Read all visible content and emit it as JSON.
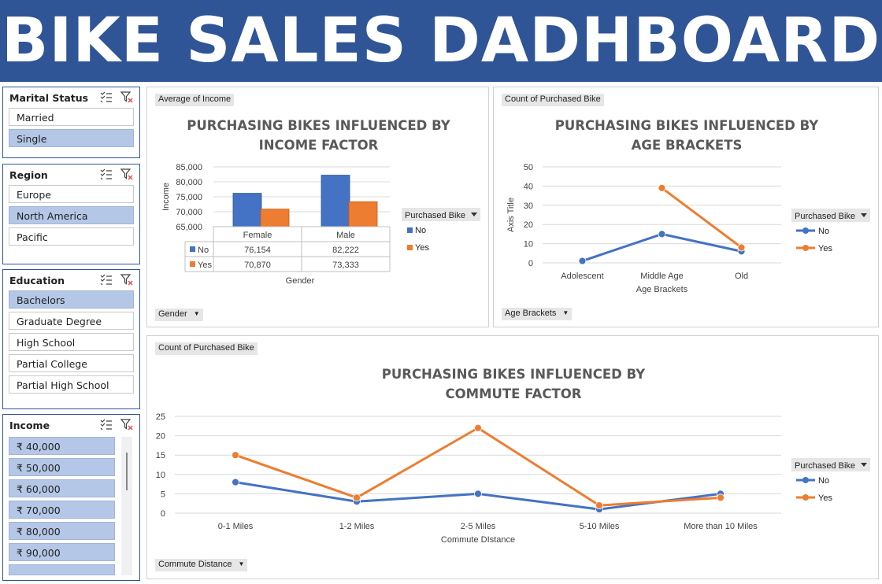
{
  "dashboard": {
    "title": "BIKE SALES DADHBOARD"
  },
  "slicers": {
    "marital": {
      "title": "Marital Status",
      "items": [
        {
          "label": "Married",
          "selected": false
        },
        {
          "label": "Single",
          "selected": true
        }
      ]
    },
    "region": {
      "title": "Region",
      "items": [
        {
          "label": "Europe",
          "selected": false
        },
        {
          "label": "North America",
          "selected": true
        },
        {
          "label": "Pacific",
          "selected": false
        }
      ]
    },
    "education": {
      "title": "Education",
      "items": [
        {
          "label": "Bachelors",
          "selected": true
        },
        {
          "label": "Graduate Degree",
          "selected": false
        },
        {
          "label": "High School",
          "selected": false
        },
        {
          "label": "Partial College",
          "selected": false
        },
        {
          "label": "Partial High School",
          "selected": false
        }
      ]
    },
    "income": {
      "title": "Income",
      "items": [
        {
          "label": "₹ 40,000",
          "selected": true
        },
        {
          "label": "₹ 50,000",
          "selected": true
        },
        {
          "label": "₹ 60,000",
          "selected": true
        },
        {
          "label": "₹ 70,000",
          "selected": true
        },
        {
          "label": "₹ 80,000",
          "selected": true
        },
        {
          "label": "₹ 90,000",
          "selected": true
        }
      ]
    }
  },
  "colors": {
    "no": "#4472c4",
    "yes": "#ed7d31",
    "selected": "#b4c7e7",
    "banner": "#2f5597"
  },
  "chart_data": [
    {
      "type": "bar",
      "value_field": "Average of Income",
      "axis_field": "Gender",
      "title": "PURCHASING BIKES INFLUENCED BY INCOME FACTOR",
      "xlabel": "Gender",
      "ylabel": "Income",
      "categories": [
        "Female",
        "Male"
      ],
      "ylim": [
        65000,
        85000
      ],
      "yticks": [
        "85,000",
        "80,000",
        "75,000",
        "70,000",
        "65,000"
      ],
      "legend_title": "Purchased Bike",
      "series": [
        {
          "name": "No",
          "values": [
            76154,
            82222
          ],
          "labels": [
            "76,154",
            "82,222"
          ]
        },
        {
          "name": "Yes",
          "values": [
            70870,
            73333
          ],
          "labels": [
            "70,870",
            "73,333"
          ]
        }
      ]
    },
    {
      "type": "line",
      "value_field": "Count of Purchased Bike",
      "axis_field": "Age Brackets",
      "title": "PURCHASING BIKES INFLUENCED BY AGE BRACKETS",
      "xlabel": "Age Brackets",
      "ylabel": "Axis Title",
      "categories": [
        "Adolescent",
        "Middle Age",
        "Old"
      ],
      "ylim": [
        0,
        50
      ],
      "yticks": [
        "50",
        "40",
        "30",
        "20",
        "10",
        "0"
      ],
      "legend_title": "Purchased Bike",
      "series": [
        {
          "name": "No",
          "values": [
            1,
            15,
            6
          ]
        },
        {
          "name": "Yes",
          "values": [
            null,
            39,
            8
          ]
        }
      ]
    },
    {
      "type": "line",
      "value_field": "Count of Purchased Bike",
      "axis_field": "Commute Distance",
      "title": "PURCHASING BIKES INFLUENCED BY COMMUTE FACTOR",
      "xlabel": "Commute DIstance",
      "categories": [
        "0-1 Miles",
        "1-2 Miles",
        "2-5 Miles",
        "5-10 Miles",
        "More than 10 Miles"
      ],
      "ylim": [
        0,
        25
      ],
      "yticks": [
        "25",
        "20",
        "15",
        "10",
        "5",
        "0"
      ],
      "legend_title": "Purchased Bike",
      "series": [
        {
          "name": "No",
          "values": [
            8,
            3,
            5,
            1,
            5
          ]
        },
        {
          "name": "Yes",
          "values": [
            15,
            4,
            22,
            2,
            4
          ]
        }
      ]
    }
  ]
}
